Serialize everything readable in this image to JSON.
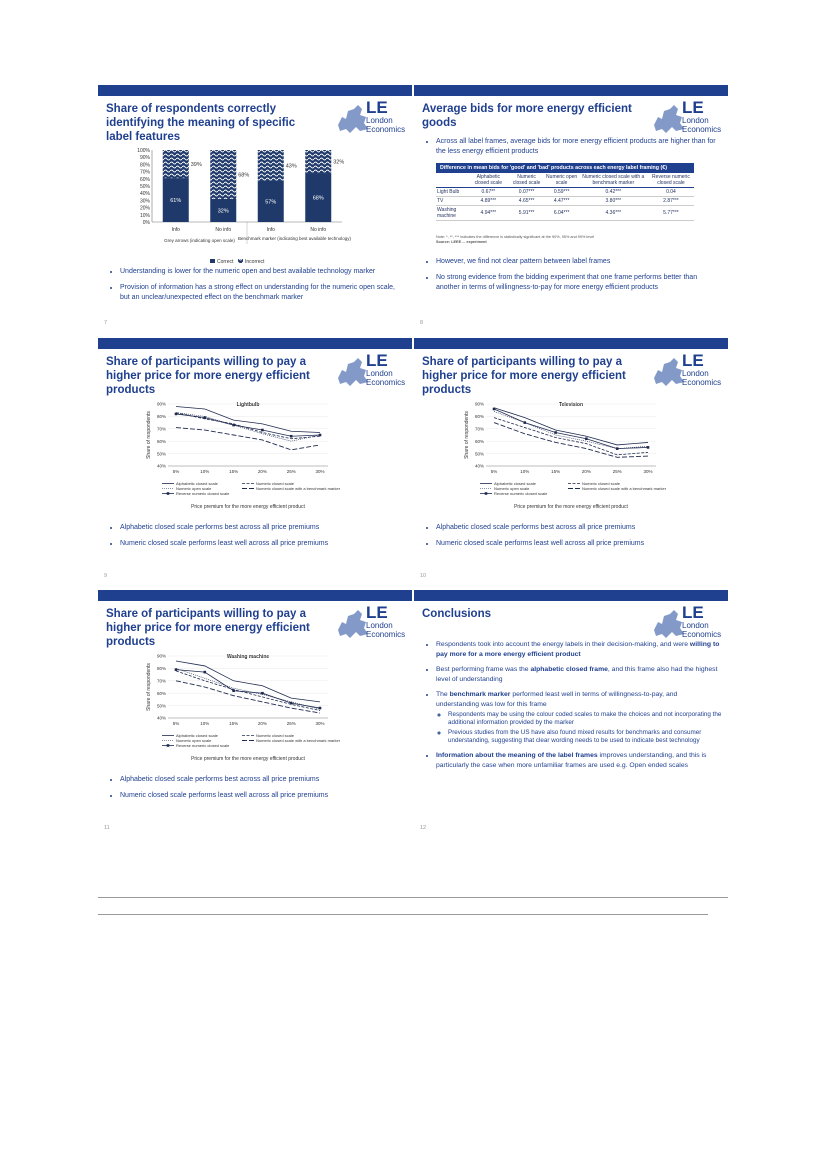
{
  "slides": [
    {
      "title": "Share of respondents correctly identifying the meaning of specific  label features",
      "page": "7",
      "bullets": [
        "Understanding is lower for the numeric open and best available technology marker",
        "Provision of information  has a strong effect on understanding for the numeric open scale, but an unclear/unexpected effect on the benchmark marker"
      ]
    },
    {
      "title": "Average bids for more energy efficient goods",
      "page": "8",
      "bullets_top": [
        "Across all label frames, average bids for more energy efficient products are higher than for the less energy efficient products"
      ],
      "bullets": [
        "However, we find not clear pattern between  label frames",
        "No strong evidence from the bidding experiment that one frame performs better  than another in terms of willingness-to-pay for more energy efficient products"
      ],
      "table": {
        "caption": "Difference in mean bids for 'good' and 'bad' products across each energy label framing (€)",
        "headers": [
          "",
          "Alphabetic closed scale",
          "Numeric closed scale",
          "Numeric open scale",
          "Numeric closed scale with a benchmark marker",
          "Reverse numeric closed scale"
        ],
        "rows": [
          [
            "Light Bulb",
            "0.67**",
            "0.07***",
            "0.59***",
            "0.42***",
            "0.04"
          ],
          [
            "TV",
            "4.89***",
            "4.65***",
            "4.47***",
            "3.80***",
            "2.87***"
          ],
          [
            "Washing machine",
            "4.94***",
            "5.91***",
            "6.04***",
            "4.36***",
            "5.77***"
          ]
        ],
        "note": "Note: *, **, *** indicates the difference is statistically significant at the 90%, 95% and 99% level",
        "source": "Source: LEEE ... experiment"
      }
    },
    {
      "title": "Share of participants willing to pay a higher price for more energy efficient products",
      "page": "9",
      "bullets": [
        "Alphabetic closed scale performs best across all price premiums",
        "Numeric closed scale performs least well across all price premiums"
      ]
    },
    {
      "title": "Share of participants willing to pay a higher price for more energy efficient products",
      "page": "10",
      "bullets": [
        "Alphabetic closed scale performs best across all price premiums",
        "Numeric closed scale performs least well across all price premiums"
      ]
    },
    {
      "title": "Share of participants willing to pay a higher price for more energy efficient products",
      "page": "11",
      "bullets": [
        "Alphabetic closed scale performs best across all price premiums",
        "Numeric closed scale performs least well across all price premiums"
      ]
    },
    {
      "title": "Conclusions",
      "page": "12",
      "c1a": "Respondents took into account the energy labels in their decision-making, and were ",
      "c1b": "willing to pay more for a more energy efficient product",
      "c2a": "Best performing frame was the ",
      "c2b": "alphabetic closed frame",
      "c2c": ", and this frame also had the highest level of understanding",
      "c3a": "The ",
      "c3b": "benchmark marker",
      "c3c": " performed  least well in terms of willingness-to-pay, and understanding was low for this frame",
      "c3s1": "Respondents may be using the colour coded scales to make the choices and not incorporating the additional information provided by the marker",
      "c3s2": "Previous studies from the US have also found mixed results for benchmarks and consumer understanding, suggesting that clear wording needs to be used to indicate best technology",
      "c4a": "Information about the meaning of the label frames",
      "c4b": " improves understanding, and this is particularly the case when more unfamiliar frames are used e.g.  Open ended scales"
    }
  ],
  "logo": {
    "le": "LE",
    "line1": "London",
    "line2": "Economics"
  },
  "colors": {
    "navy": "#1f3f8f",
    "pattern": "#dfe3ea"
  },
  "chart_data": [
    {
      "type": "bar",
      "stacked": true,
      "categories": [
        "Info",
        "No info",
        "Info",
        "No info"
      ],
      "groups": [
        "Grey arrows (indicating open scale)",
        "Benchmark marker (indicating best available technology)"
      ],
      "series": [
        {
          "name": "Correct",
          "values": [
            61,
            32,
            57,
            68
          ]
        },
        {
          "name": "Incorrect",
          "values": [
            39,
            68,
            43,
            32
          ]
        }
      ],
      "ylim": [
        0,
        100
      ],
      "yticks": [
        "0%",
        "10%",
        "20%",
        "30%",
        "40%",
        "50%",
        "60%",
        "70%",
        "80%",
        "90%",
        "100%"
      ],
      "labels_correct": [
        "61%",
        "32%",
        "57%",
        "68%"
      ],
      "labels_incorrect": [
        "39%",
        "68%",
        "43%",
        "32%"
      ],
      "legend": "bottom"
    },
    {
      "type": "line",
      "title": "Lightbulb",
      "x": [
        "5%",
        "10%",
        "15%",
        "20%",
        "25%",
        "30%"
      ],
      "ylim": [
        40,
        90
      ],
      "yticks": [
        "40%",
        "50%",
        "60%",
        "70%",
        "80%",
        "90%"
      ],
      "ylabel": "Share of respondents",
      "xlabel": "Price premium for the more energy efficient product",
      "series": [
        {
          "name": "Alphabetic closed scale",
          "values": [
            88,
            86,
            77,
            74,
            68,
            67
          ]
        },
        {
          "name": "Numeric closed scale",
          "values": [
            83,
            78,
            74,
            67,
            62,
            64
          ]
        },
        {
          "name": "Numeric open scale",
          "values": [
            83,
            80,
            73,
            66,
            60,
            65
          ]
        },
        {
          "name": "Numeric closed scale with a benchmark marker",
          "values": [
            71,
            69,
            65,
            61,
            53,
            57
          ]
        },
        {
          "name": "Reverse numeric closed scale",
          "values": [
            82,
            79,
            73,
            69,
            64,
            65
          ]
        }
      ]
    },
    {
      "type": "line",
      "title": "Television",
      "x": [
        "5%",
        "10%",
        "15%",
        "20%",
        "25%",
        "30%"
      ],
      "ylim": [
        40,
        90
      ],
      "yticks": [
        "40%",
        "50%",
        "60%",
        "70%",
        "80%",
        "90%"
      ],
      "ylabel": "Share of respondents",
      "xlabel": "Price premium for the more energy efficient product",
      "series": [
        {
          "name": "Alphabetic closed scale",
          "values": [
            87,
            79,
            69,
            64,
            57,
            59
          ]
        },
        {
          "name": "Numeric closed scale",
          "values": [
            79,
            71,
            63,
            58,
            49,
            51
          ]
        },
        {
          "name": "Numeric open scale",
          "values": [
            84,
            75,
            65,
            60,
            54,
            56
          ]
        },
        {
          "name": "Numeric closed scale with a benchmark marker",
          "values": [
            75,
            66,
            59,
            54,
            47,
            48
          ]
        },
        {
          "name": "Reverse numeric closed scale",
          "values": [
            86,
            75,
            67,
            62,
            54,
            55
          ]
        }
      ]
    },
    {
      "type": "line",
      "title": "Washing machine",
      "x": [
        "5%",
        "10%",
        "15%",
        "20%",
        "25%",
        "30%"
      ],
      "ylim": [
        40,
        90
      ],
      "yticks": [
        "40%",
        "50%",
        "60%",
        "70%",
        "80%",
        "90%"
      ],
      "ylabel": "Share of respondents",
      "xlabel": "Price premium for the more energy efficient product",
      "series": [
        {
          "name": "Alphabetic closed scale",
          "values": [
            86,
            82,
            70,
            66,
            56,
            53
          ]
        },
        {
          "name": "Numeric closed scale",
          "values": [
            78,
            70,
            63,
            57,
            51,
            46
          ]
        },
        {
          "name": "Numeric open scale",
          "values": [
            80,
            72,
            64,
            59,
            53,
            47
          ]
        },
        {
          "name": "Numeric closed scale with a benchmark marker",
          "values": [
            70,
            65,
            58,
            53,
            48,
            44
          ]
        },
        {
          "name": "Reverse numeric closed scale",
          "values": [
            79,
            77,
            62,
            60,
            52,
            48
          ]
        }
      ]
    }
  ]
}
